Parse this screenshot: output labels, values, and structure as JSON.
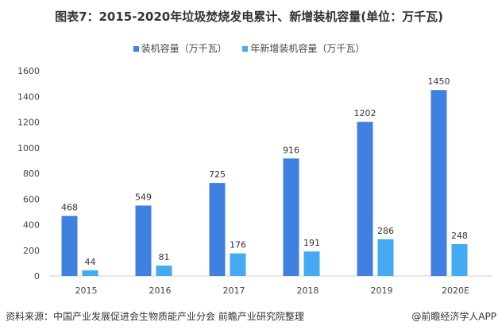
{
  "chart_data": {
    "type": "bar",
    "title": "图表7：2015-2020年垃圾焚烧发电累计、新增装机容量(单位：万千瓦)",
    "categories": [
      "2015",
      "2016",
      "2017",
      "2018",
      "2019",
      "2020E"
    ],
    "series": [
      {
        "name": "装机容量（万千瓦）",
        "values": [
          468,
          549,
          725,
          916,
          1202,
          1450
        ],
        "color": "#3F80E0"
      },
      {
        "name": "年新增装机容量（万千瓦）",
        "values": [
          44,
          81,
          176,
          191,
          286,
          248
        ],
        "color": "#44AAF2"
      }
    ],
    "yticks": [
      0,
      200,
      400,
      600,
      800,
      1000,
      1200,
      1400,
      1600
    ],
    "ylim": [
      0,
      1600
    ],
    "grid": false,
    "legend": "top-center"
  },
  "source": "资料来源：中国产业发展促进会生物质能产业分会 前瞻产业研究院整理",
  "credit": "@前瞻经济学人APP"
}
